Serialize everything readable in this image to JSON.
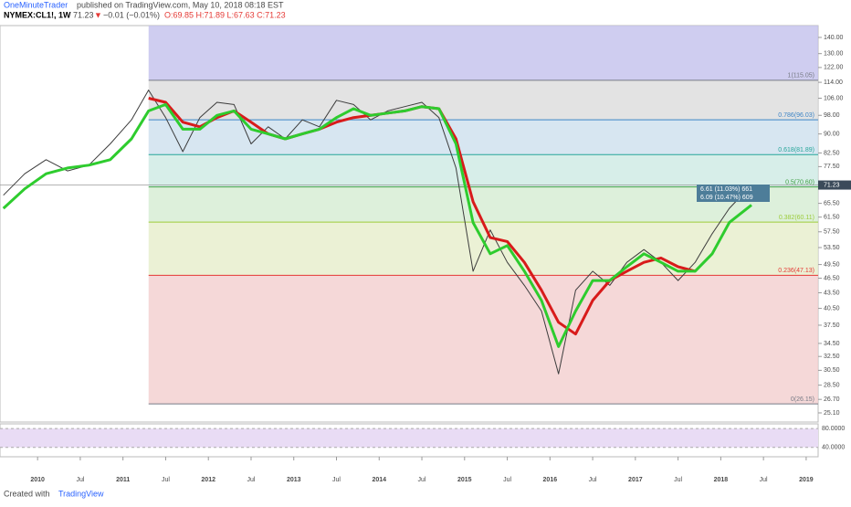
{
  "header": {
    "author": "OneMinuteTrader",
    "published": "published on TradingView.com, May 10, 2018 08:18 EST",
    "symbol": "NYMEX:CL1!, 1W",
    "last": "71.23",
    "arrow": "▼",
    "change": "−0.01 (−0.01%)",
    "ohlc": "O:69.85 H:71.89 L:67.63 C:71.23"
  },
  "footer": {
    "created": "Created with",
    "brand": "TradingView"
  },
  "chart_data": {
    "type": "line",
    "log_scale": true,
    "x": [
      2009.6,
      2009.85,
      2010.1,
      2010.35,
      2010.6,
      2010.85,
      2011.1,
      2011.3,
      2011.5,
      2011.7,
      2011.9,
      2012.1,
      2012.3,
      2012.5,
      2012.7,
      2012.9,
      2013.1,
      2013.3,
      2013.5,
      2013.7,
      2013.9,
      2014.1,
      2014.3,
      2014.5,
      2014.7,
      2014.9,
      2015.1,
      2015.3,
      2015.5,
      2015.7,
      2015.9,
      2016.1,
      2016.3,
      2016.5,
      2016.7,
      2016.9,
      2017.1,
      2017.3,
      2017.5,
      2017.7,
      2017.9,
      2018.1,
      2018.36
    ],
    "series": [
      {
        "color": "#3c3c3c",
        "values": [
          68,
          75,
          80,
          76,
          78,
          86,
          96,
          110,
          97,
          83,
          97,
          104,
          103,
          86,
          93,
          88,
          96,
          93,
          105,
          103,
          96,
          100,
          102,
          104,
          97,
          77,
          48,
          58,
          50,
          45,
          40,
          30,
          44,
          48,
          45,
          50,
          53,
          50,
          46,
          50,
          57,
          64,
          71.23
        ]
      },
      {
        "color": "#d81b1b",
        "values": [
          null,
          null,
          null,
          null,
          null,
          null,
          null,
          106,
          104,
          95,
          93,
          97,
          100,
          95,
          90,
          88,
          90,
          92,
          95,
          97,
          98,
          99,
          100,
          102,
          101,
          88,
          66,
          56,
          55,
          50,
          44,
          38,
          36,
          42,
          46,
          48,
          50,
          51,
          49,
          48,
          null,
          null,
          null
        ]
      },
      {
        "color": "#2ecc2e",
        "values": [
          64,
          70,
          75,
          77,
          78,
          80,
          88,
          100,
          103,
          92,
          92,
          98,
          100,
          92,
          90,
          88,
          90,
          92,
          97,
          101,
          98,
          99,
          100,
          102,
          101,
          86,
          60,
          52,
          54,
          48,
          42,
          34,
          40,
          46,
          46,
          49,
          52,
          50,
          48,
          48,
          52,
          60,
          65
        ]
      }
    ],
    "xlim": [
      2009.56,
      2019.14
    ],
    "xticks": [
      2010,
      {
        "value": 2010.5,
        "label": "Jul"
      },
      2011,
      {
        "value": 2011.5,
        "label": "Jul"
      },
      2012,
      {
        "value": 2012.5,
        "label": "Jul"
      },
      2013,
      {
        "value": 2013.5,
        "label": "Jul"
      },
      2014,
      {
        "value": 2014.5,
        "label": "Jul"
      },
      2015,
      {
        "value": 2015.5,
        "label": "Jul"
      },
      2016,
      {
        "value": 2016.5,
        "label": "Jul"
      },
      2017,
      {
        "value": 2017.5,
        "label": "Jul"
      },
      2018,
      {
        "value": 2018.5,
        "label": "Jul"
      },
      2019
    ],
    "ylim": [
      24.07,
      147.8
    ],
    "yticks": [
      {
        "value": 140,
        "label": "140.00"
      },
      {
        "value": 130,
        "label": "130.00"
      },
      {
        "value": 122,
        "label": "122.00"
      },
      {
        "value": 114,
        "label": "114.00"
      },
      {
        "value": 106,
        "label": "106.00"
      },
      {
        "value": 98,
        "label": "98.00"
      },
      {
        "value": 90,
        "label": "90.00"
      },
      {
        "value": 82.5,
        "label": "82.50"
      },
      {
        "value": 77.5,
        "label": "77.50"
      },
      {
        "value": 65.5,
        "label": "65.50"
      },
      {
        "value": 61.5,
        "label": "61.50"
      },
      {
        "value": 57.5,
        "label": "57.50"
      },
      {
        "value": 53.5,
        "label": "53.50"
      },
      {
        "value": 49.5,
        "label": "49.50"
      },
      {
        "value": 46.5,
        "label": "46.50"
      },
      {
        "value": 43.5,
        "label": "43.50"
      },
      {
        "value": 40.5,
        "label": "40.50"
      },
      {
        "value": 37.5,
        "label": "37.50"
      },
      {
        "value": 34.5,
        "label": "34.50"
      },
      {
        "value": 32.5,
        "label": "32.50"
      },
      {
        "value": 30.5,
        "label": "30.50"
      },
      {
        "value": 28.5,
        "label": "28.50"
      },
      {
        "value": 26.7,
        "label": "26.70"
      },
      {
        "value": 25.1,
        "label": "25.10"
      }
    ],
    "last_price": {
      "value": 71.23,
      "label": "71.23"
    },
    "fib_start": 2011.3,
    "fib_top_color": "#c3c0ec",
    "fib_levels": [
      {
        "value": 115.05,
        "label": "1(115.05)",
        "color": "#787b86",
        "band": "#dcdcdc"
      },
      {
        "value": 96.03,
        "label": "0.786(96.03)",
        "color": "#3d85c6",
        "band": "#cde0ee"
      },
      {
        "value": 81.89,
        "label": "0.618(81.89)",
        "color": "#26a69a",
        "band": "#cdeae4"
      },
      {
        "value": 70.6,
        "label": "0.5(70.60)",
        "color": "#43a047",
        "band": "#d4ecd2"
      },
      {
        "value": 60.11,
        "label": "0.382(60.11)",
        "color": "#9ccc3a",
        "band": "#e6eecb"
      },
      {
        "value": 47.13,
        "label": "0.236(47.13)",
        "color": "#e53935",
        "band": "#f2cece"
      },
      {
        "value": 26.15,
        "label": "0(26.15)",
        "color": "#787b86",
        "band": null
      }
    ],
    "annotations": [
      "6.61 (11.03%) 661",
      "6.09 (10.47%) 609"
    ],
    "rsi_ticks": [
      {
        "value": 80,
        "label": "80.0000"
      },
      {
        "value": 40,
        "label": "40.0000"
      }
    ],
    "rsi_lim": [
      20,
      90
    ]
  }
}
